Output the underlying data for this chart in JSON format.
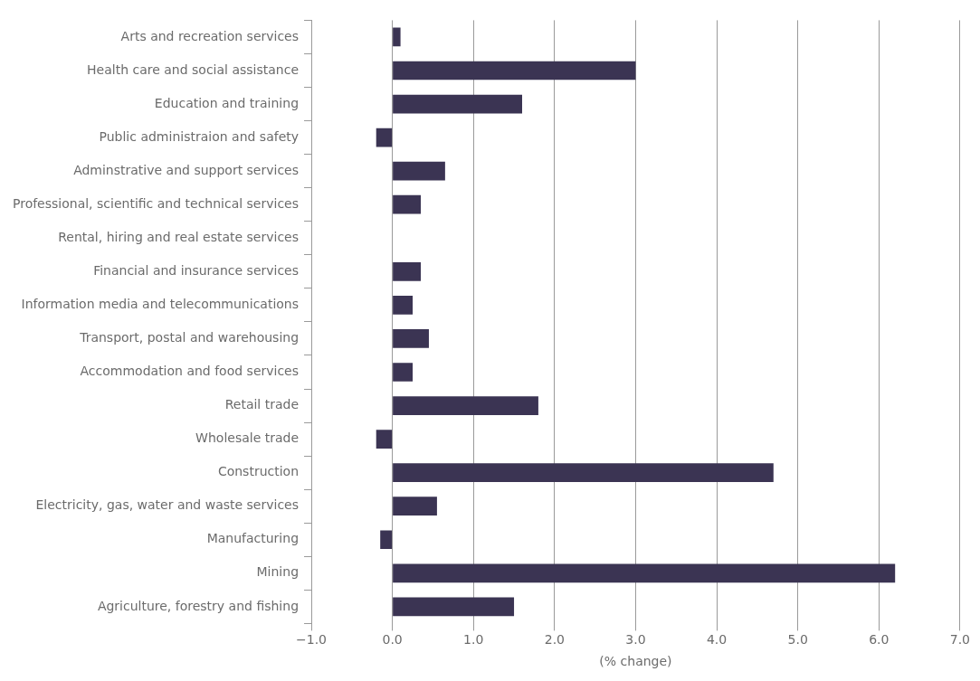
{
  "chart_data": {
    "type": "bar",
    "orientation": "horizontal",
    "xlabel": "(% change)",
    "categories": [
      "Arts and recreation services",
      "Health care and social assistance",
      "Education and training",
      "Public administraion and safety",
      "Adminstrative and support services",
      "Professional, scientific and technical services",
      "Rental, hiring and real estate services",
      "Financial and insurance services",
      "Information media and telecommunications",
      "Transport, postal and warehousing",
      "Accommodation and food services",
      "Retail trade",
      "Wholesale trade",
      "Construction",
      "Electricity, gas, water and waste services",
      "Manufacturing",
      "Mining",
      "Agriculture, forestry and fishing"
    ],
    "values": [
      0.1,
      3.0,
      1.6,
      -0.2,
      0.65,
      0.35,
      0,
      0.35,
      0.25,
      0.45,
      0.25,
      1.8,
      -0.2,
      4.7,
      0.55,
      -0.15,
      6.2,
      1.5
    ],
    "color": "#3b3453",
    "xlim": [
      -1,
      7
    ],
    "xticks": [
      {
        "value": -1,
        "label": "−1.0"
      },
      {
        "value": 0,
        "label": "0.0"
      },
      {
        "value": 1,
        "label": "1.0"
      },
      {
        "value": 2,
        "label": "2.0"
      },
      {
        "value": 3,
        "label": "3.0"
      },
      {
        "value": 4,
        "label": "4.0"
      },
      {
        "value": 5,
        "label": "5.0"
      },
      {
        "value": 6,
        "label": "6.0"
      },
      {
        "value": 7,
        "label": "7.0"
      }
    ],
    "grid": "x",
    "legend": false
  }
}
